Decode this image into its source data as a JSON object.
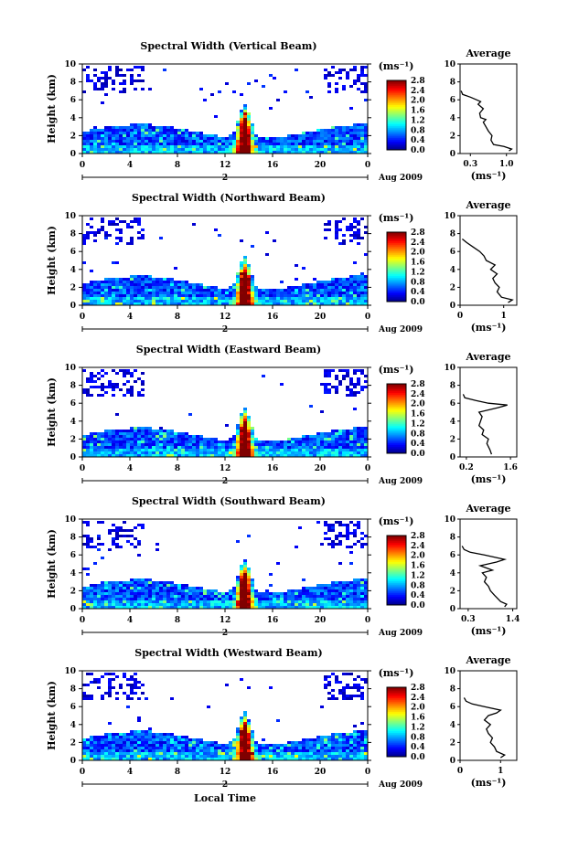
{
  "chart_data": [
    {
      "type": "heatmap",
      "title": "Spectral Width (Vertical Beam)",
      "ylabel": "Height (km)",
      "ylim": [
        0,
        10
      ],
      "yticks": [
        "0",
        "2",
        "4",
        "6",
        "8",
        "10"
      ],
      "xlim": [
        0,
        24
      ],
      "xticks": [
        "0",
        "4",
        "8",
        "12",
        "16",
        "20",
        "0"
      ],
      "day_labels": [
        "2"
      ],
      "date_label": "Aug 2009",
      "colorbar": {
        "unit": "(ms⁻¹)",
        "ticks": [
          "0.0",
          "0.4",
          "0.8",
          "1.2",
          "1.6",
          "2.0",
          "2.4",
          "2.8"
        ]
      },
      "average": {
        "title": "Average",
        "xlabel": "(ms⁻¹)",
        "xticks": [
          "0.3",
          "1.0"
        ],
        "xlim": [
          0.1,
          1.2
        ],
        "profile": [
          [
            1.05,
            0.3
          ],
          [
            1.1,
            0.5
          ],
          [
            0.95,
            0.8
          ],
          [
            0.75,
            1.0
          ],
          [
            0.7,
            1.5
          ],
          [
            0.72,
            2.0
          ],
          [
            0.65,
            2.5
          ],
          [
            0.6,
            3.0
          ],
          [
            0.55,
            3.5
          ],
          [
            0.6,
            3.8
          ],
          [
            0.5,
            4.0
          ],
          [
            0.48,
            4.5
          ],
          [
            0.55,
            5.0
          ],
          [
            0.45,
            5.5
          ],
          [
            0.5,
            5.8
          ],
          [
            0.42,
            6.0
          ],
          [
            0.3,
            6.3
          ],
          [
            0.15,
            6.6
          ],
          [
            0.12,
            7.0
          ]
        ]
      }
    },
    {
      "type": "heatmap",
      "title": "Spectral Width (Northward Beam)",
      "ylabel": "Height (km)",
      "ylim": [
        0,
        10
      ],
      "yticks": [
        "0",
        "2",
        "4",
        "6",
        "8",
        "10"
      ],
      "xlim": [
        0,
        24
      ],
      "xticks": [
        "0",
        "4",
        "8",
        "12",
        "16",
        "20",
        "0"
      ],
      "day_labels": [
        "2"
      ],
      "date_label": "Aug 2009",
      "colorbar": {
        "unit": "(ms⁻¹)",
        "ticks": [
          "0.0",
          "0.4",
          "0.8",
          "1.2",
          "1.6",
          "2.0",
          "2.4",
          "2.8"
        ]
      },
      "average": {
        "title": "Average",
        "xlabel": "(ms⁻¹)",
        "xticks": [
          "0",
          "1"
        ],
        "xlim": [
          0,
          1.3
        ],
        "profile": [
          [
            1.1,
            0.3
          ],
          [
            1.2,
            0.6
          ],
          [
            0.95,
            0.9
          ],
          [
            0.85,
            1.5
          ],
          [
            0.9,
            2.0
          ],
          [
            0.8,
            2.5
          ],
          [
            0.75,
            3.0
          ],
          [
            0.85,
            3.5
          ],
          [
            0.7,
            4.0
          ],
          [
            0.8,
            4.5
          ],
          [
            0.6,
            5.0
          ],
          [
            0.55,
            5.5
          ],
          [
            0.45,
            6.0
          ],
          [
            0.3,
            6.5
          ],
          [
            0.15,
            7.0
          ],
          [
            0.05,
            7.4
          ]
        ]
      }
    },
    {
      "type": "heatmap",
      "title": "Spectral Width (Eastward Beam)",
      "ylabel": "Height (km)",
      "ylim": [
        0,
        10
      ],
      "yticks": [
        "0",
        "2",
        "4",
        "6",
        "8",
        "10"
      ],
      "xlim": [
        0,
        24
      ],
      "xticks": [
        "0",
        "4",
        "8",
        "12",
        "16",
        "20",
        "0"
      ],
      "day_labels": [
        "2"
      ],
      "date_label": "Aug 2009",
      "colorbar": {
        "unit": "(ms⁻¹)",
        "ticks": [
          "0.0",
          "0.4",
          "0.8",
          "1.2",
          "1.6",
          "2.0",
          "2.4",
          "2.8"
        ]
      },
      "average": {
        "title": "Average",
        "xlabel": "(ms⁻¹)",
        "xticks": [
          "0.2",
          "1.6"
        ],
        "xlim": [
          0.0,
          1.8
        ],
        "profile": [
          [
            1.0,
            0.3
          ],
          [
            0.95,
            0.8
          ],
          [
            0.85,
            1.5
          ],
          [
            0.9,
            2.0
          ],
          [
            0.7,
            2.5
          ],
          [
            0.75,
            3.0
          ],
          [
            0.6,
            3.5
          ],
          [
            0.65,
            4.0
          ],
          [
            0.7,
            4.5
          ],
          [
            0.6,
            5.0
          ],
          [
            1.2,
            5.5
          ],
          [
            1.5,
            5.8
          ],
          [
            0.9,
            6.0
          ],
          [
            0.5,
            6.3
          ],
          [
            0.15,
            6.6
          ],
          [
            0.1,
            7.0
          ]
        ]
      }
    },
    {
      "type": "heatmap",
      "title": "Spectral Width (Southward Beam)",
      "ylabel": "Height (km)",
      "ylim": [
        0,
        10
      ],
      "yticks": [
        "0",
        "2",
        "4",
        "6",
        "8",
        "10"
      ],
      "xlim": [
        0,
        24
      ],
      "xticks": [
        "0",
        "4",
        "8",
        "12",
        "16",
        "20",
        "0"
      ],
      "day_labels": [
        "2"
      ],
      "date_label": "Aug 2009",
      "colorbar": {
        "unit": "(ms⁻¹)",
        "ticks": [
          "0.0",
          "0.4",
          "0.8",
          "1.2",
          "1.6",
          "2.0",
          "2.4",
          "2.8"
        ]
      },
      "average": {
        "title": "Average",
        "xlabel": "(ms⁻¹)",
        "xticks": [
          "0.3",
          "1.4"
        ],
        "xlim": [
          0.1,
          1.5
        ],
        "profile": [
          [
            1.2,
            0.2
          ],
          [
            1.25,
            0.5
          ],
          [
            1.1,
            0.8
          ],
          [
            0.95,
            1.5
          ],
          [
            0.85,
            2.0
          ],
          [
            0.8,
            2.5
          ],
          [
            0.7,
            3.0
          ],
          [
            0.75,
            3.5
          ],
          [
            0.65,
            4.0
          ],
          [
            0.9,
            4.3
          ],
          [
            0.6,
            4.8
          ],
          [
            1.0,
            5.2
          ],
          [
            1.2,
            5.5
          ],
          [
            0.7,
            6.0
          ],
          [
            0.35,
            6.3
          ],
          [
            0.2,
            6.6
          ],
          [
            0.15,
            7.0
          ]
        ]
      }
    },
    {
      "type": "heatmap",
      "title": "Spectral Width (Westward Beam)",
      "ylabel": "Height (km)",
      "xlabel": "Local Time",
      "ylim": [
        0,
        10
      ],
      "yticks": [
        "0",
        "2",
        "4",
        "6",
        "8",
        "10"
      ],
      "xlim": [
        0,
        24
      ],
      "xticks": [
        "0",
        "4",
        "8",
        "12",
        "16",
        "20",
        "0"
      ],
      "day_labels": [
        "2"
      ],
      "date_label": "Aug 2009",
      "colorbar": {
        "unit": "(ms⁻¹)",
        "ticks": [
          "0.0",
          "0.4",
          "0.8",
          "1.2",
          "1.6",
          "2.0",
          "2.4",
          "2.8"
        ]
      },
      "average": {
        "title": "Average",
        "xlabel": "(ms⁻¹)",
        "xticks": [
          "0",
          "1"
        ],
        "xlim": [
          0,
          1.4
        ],
        "profile": [
          [
            1.0,
            0.3
          ],
          [
            1.1,
            0.6
          ],
          [
            0.9,
            1.0
          ],
          [
            0.85,
            1.5
          ],
          [
            0.75,
            2.0
          ],
          [
            0.8,
            2.5
          ],
          [
            0.7,
            3.0
          ],
          [
            0.65,
            3.5
          ],
          [
            0.75,
            4.0
          ],
          [
            0.6,
            4.5
          ],
          [
            0.7,
            5.0
          ],
          [
            0.9,
            5.3
          ],
          [
            1.0,
            5.6
          ],
          [
            0.6,
            6.0
          ],
          [
            0.3,
            6.3
          ],
          [
            0.15,
            6.6
          ],
          [
            0.1,
            7.0
          ]
        ]
      }
    }
  ]
}
